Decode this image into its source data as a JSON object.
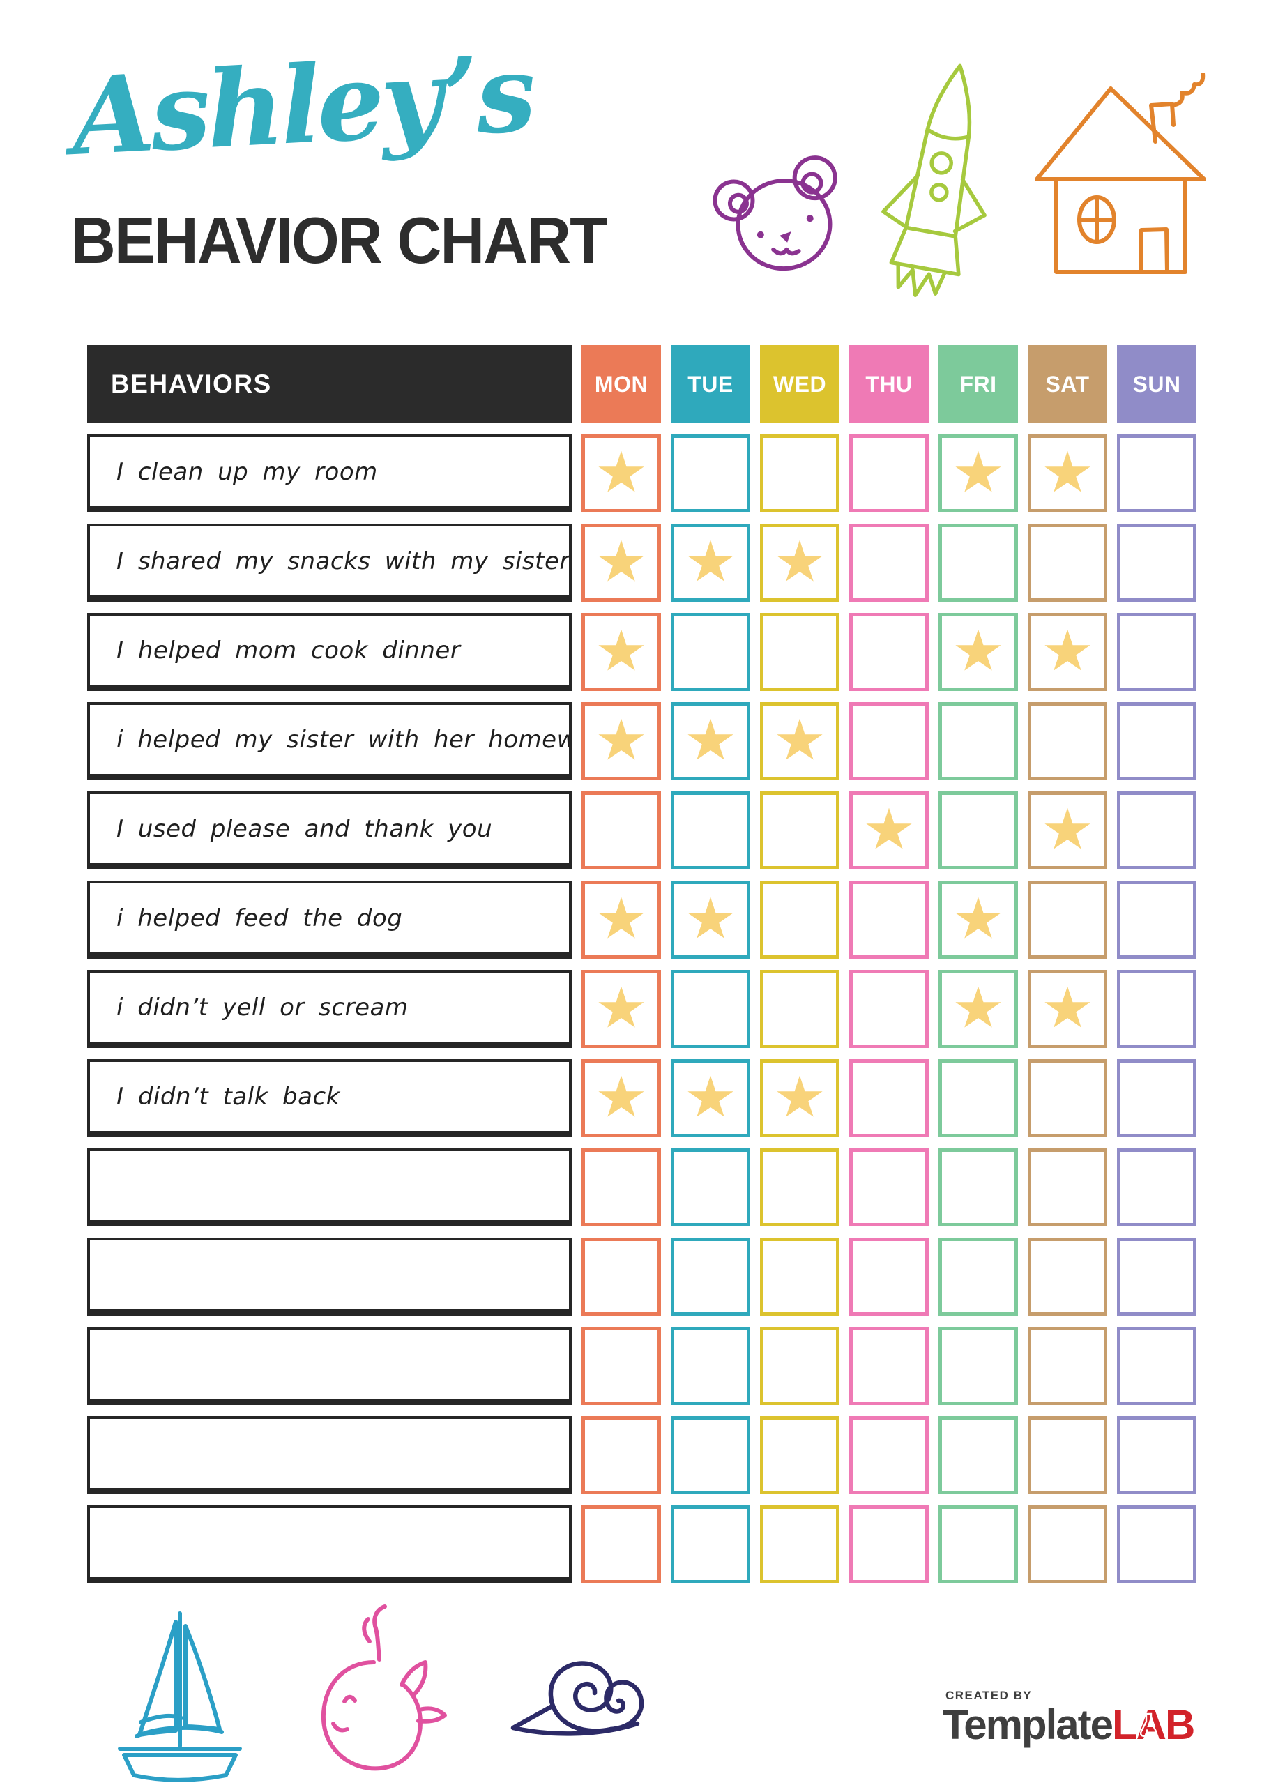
{
  "header": {
    "name": "Ashley’s",
    "name_color": "#35AEC0",
    "title": "BEHAVIOR CHART",
    "title_color": "#2D2D2D"
  },
  "table": {
    "behaviors_header": "BEHAVIORS",
    "header_bg": "#2B2B2B",
    "header_text_color": "#FFFFFF",
    "star_color": "#F8D37A",
    "days": [
      {
        "label": "MON",
        "color": "#EB7A57"
      },
      {
        "label": "TUE",
        "color": "#2FA9BC"
      },
      {
        "label": "WED",
        "color": "#DCC32E"
      },
      {
        "label": "THU",
        "color": "#EF7AB5"
      },
      {
        "label": "FRI",
        "color": "#7DCA9B"
      },
      {
        "label": "SAT",
        "color": "#C69D6C"
      },
      {
        "label": "SUN",
        "color": "#908CC8"
      }
    ],
    "rows": [
      {
        "label": "I clean up my room",
        "stars": [
          1,
          0,
          0,
          0,
          1,
          1,
          0
        ]
      },
      {
        "label": "I shared my snacks with my sister",
        "stars": [
          1,
          1,
          1,
          0,
          0,
          0,
          0
        ]
      },
      {
        "label": "I helped mom cook dinner",
        "stars": [
          1,
          0,
          0,
          0,
          1,
          1,
          0
        ]
      },
      {
        "label": "i helped my sister with her homework",
        "stars": [
          1,
          1,
          1,
          0,
          0,
          0,
          0
        ]
      },
      {
        "label": "I used please and thank you",
        "stars": [
          0,
          0,
          0,
          1,
          0,
          1,
          0
        ]
      },
      {
        "label": "i helped feed the dog",
        "stars": [
          1,
          1,
          0,
          0,
          1,
          0,
          0
        ]
      },
      {
        "label": "i didn’t yell or scream",
        "stars": [
          1,
          0,
          0,
          0,
          1,
          1,
          0
        ]
      },
      {
        "label": "I didn’t talk back",
        "stars": [
          1,
          1,
          1,
          0,
          0,
          0,
          0
        ]
      },
      {
        "label": "",
        "stars": [
          0,
          0,
          0,
          0,
          0,
          0,
          0
        ]
      },
      {
        "label": "",
        "stars": [
          0,
          0,
          0,
          0,
          0,
          0,
          0
        ]
      },
      {
        "label": "",
        "stars": [
          0,
          0,
          0,
          0,
          0,
          0,
          0
        ]
      },
      {
        "label": "",
        "stars": [
          0,
          0,
          0,
          0,
          0,
          0,
          0
        ]
      },
      {
        "label": "",
        "stars": [
          0,
          0,
          0,
          0,
          0,
          0,
          0
        ]
      }
    ]
  },
  "doodles": {
    "bear_color": "#8A3390",
    "rocket_color": "#A6C93E",
    "house_color": "#E2832C",
    "boat_color": "#2B9FC6",
    "whale_color": "#E0519F",
    "snail_color": "#2C2A67"
  },
  "footer": {
    "created_by": "CREATED BY",
    "brand_first": "Template",
    "brand_second": "LAB",
    "brand_first_color": "#3F3F3F",
    "brand_second_color": "#D2232A"
  }
}
